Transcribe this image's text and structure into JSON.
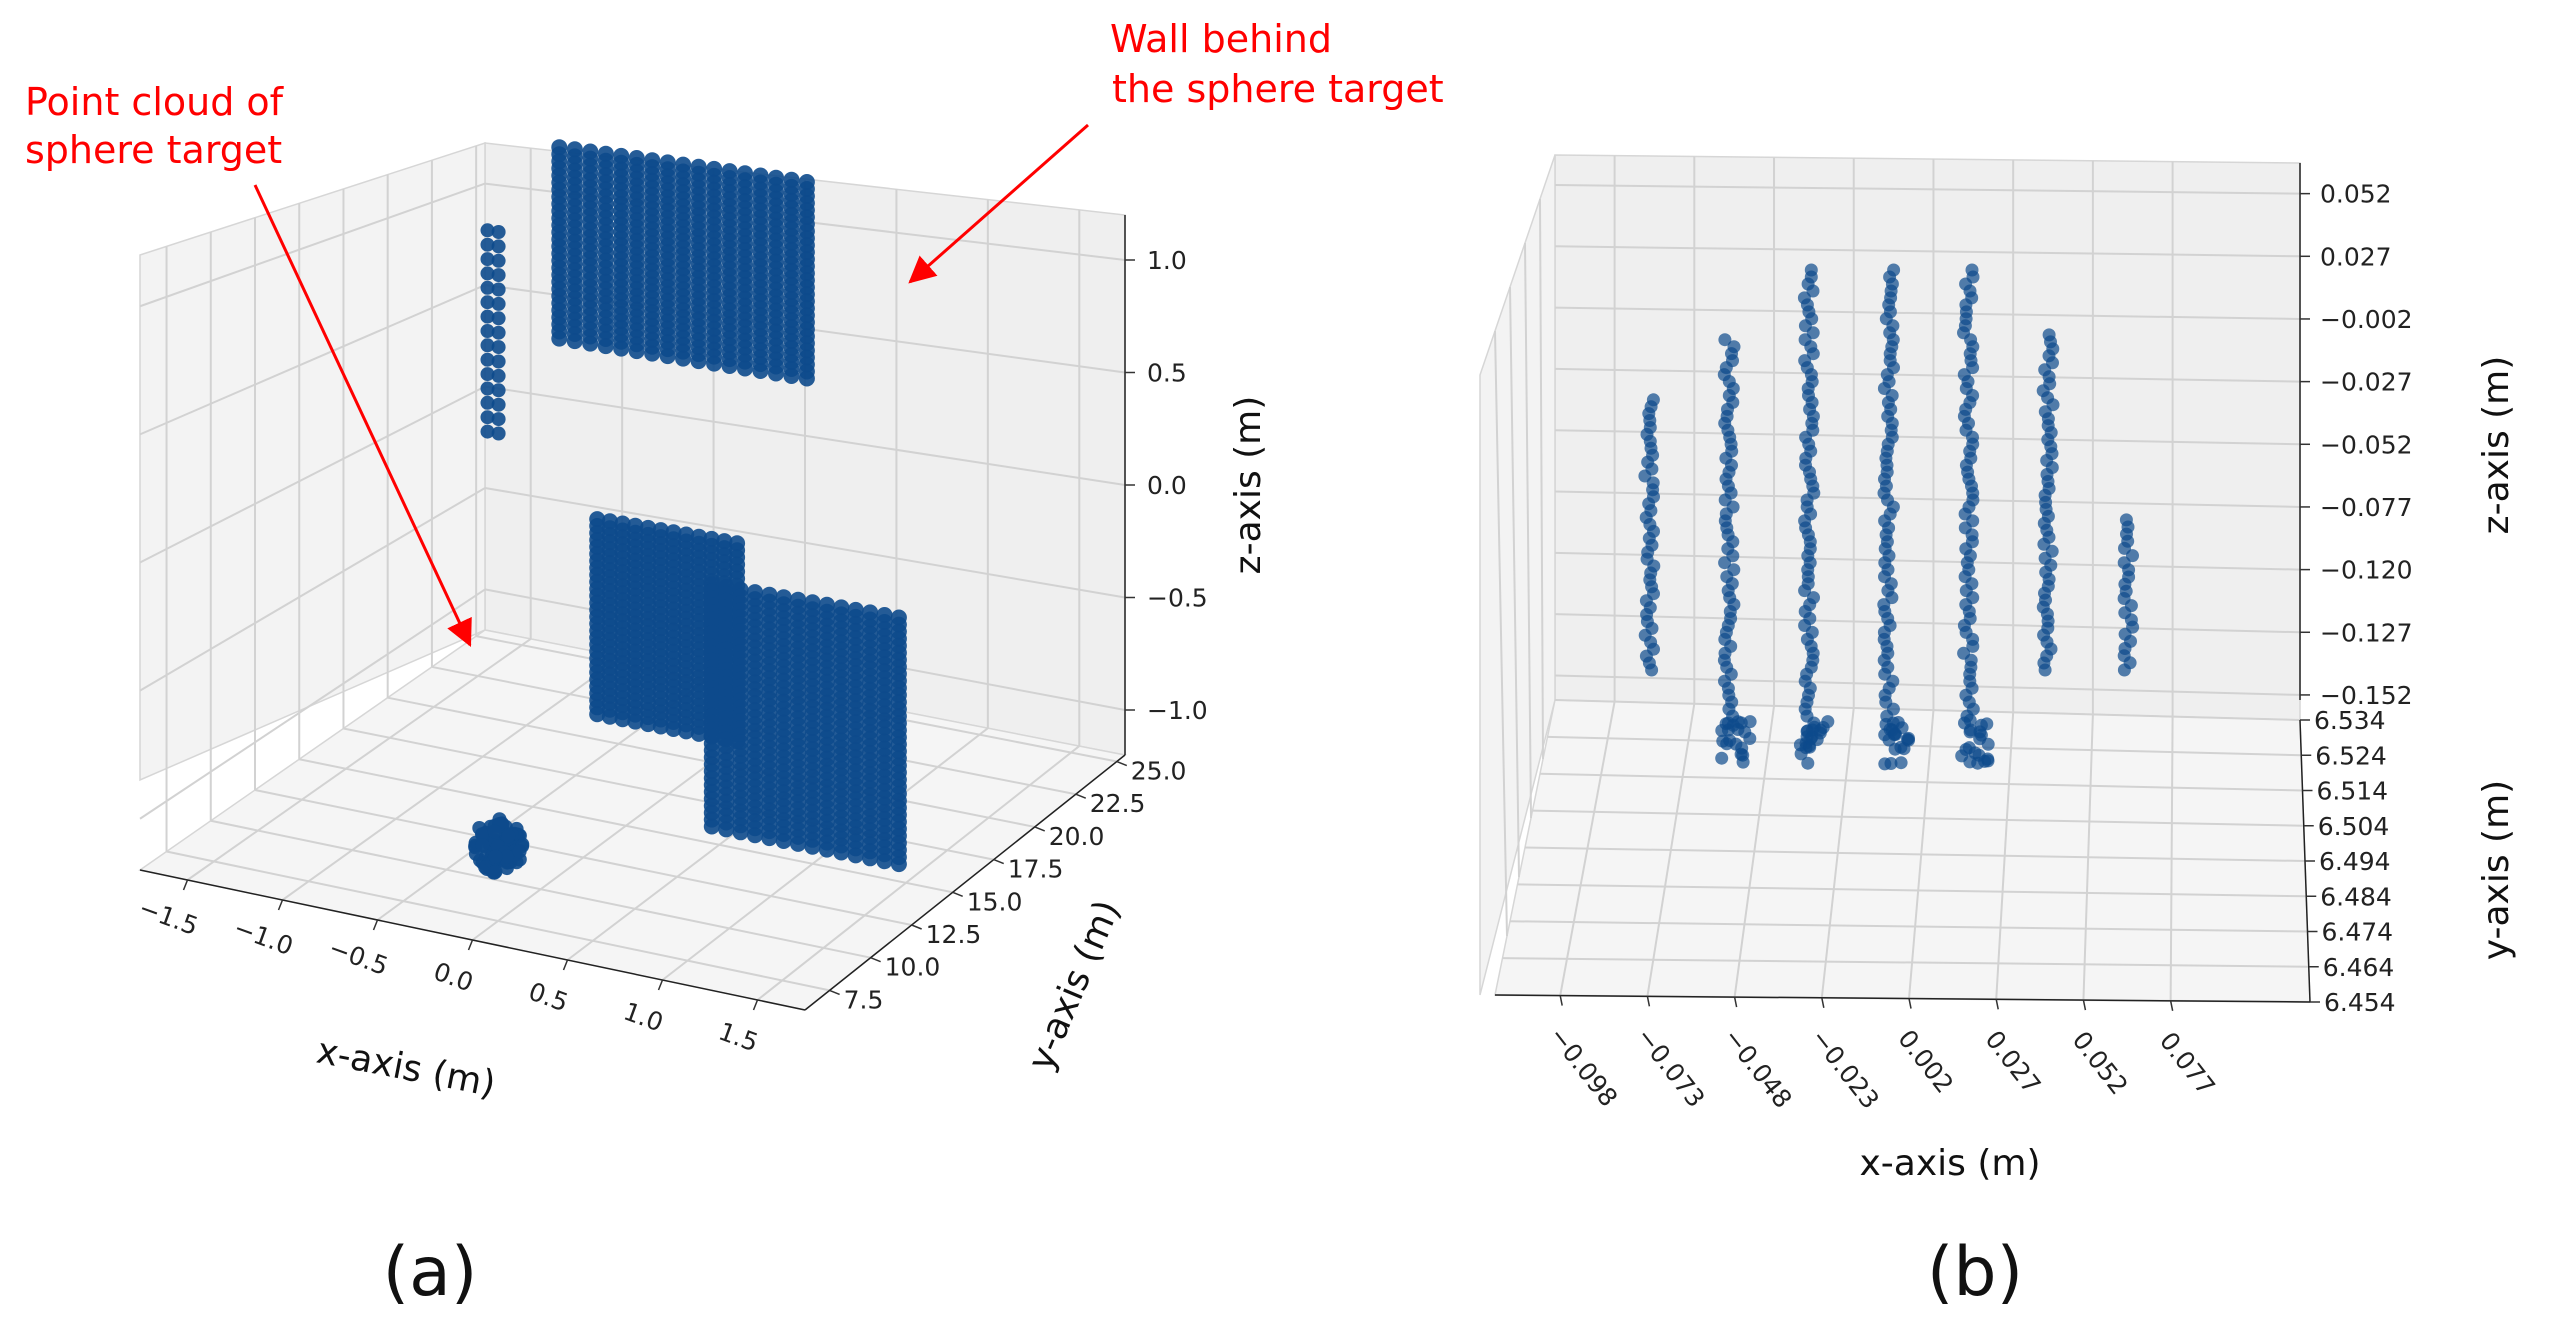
{
  "colors": {
    "points": "#0d4a8c",
    "annotation": "#ff0000"
  },
  "chart_data": [
    {
      "type": "scatter",
      "subtype": "3d-scatter",
      "panel_label": "(a)",
      "xlabel": "x-axis (m)",
      "ylabel": "y-axis (m)",
      "zlabel": "z-axis (m)",
      "xlim": [
        -1.75,
        1.75
      ],
      "ylim": [
        6.0,
        25.5
      ],
      "zlim": [
        -1.2,
        1.2
      ],
      "x_ticks": [
        "−1.5",
        "−1.0",
        "−0.5",
        "0.0",
        "0.5",
        "1.0",
        "1.5"
      ],
      "y_ticks": [
        "7.5",
        "10.0",
        "12.5",
        "15.0",
        "17.5",
        "20.0",
        "22.5",
        "25.0"
      ],
      "z_ticks": [
        "−1.0",
        "−0.5",
        "0.0",
        "0.5",
        "1.0"
      ],
      "grid": true,
      "annotations": [
        {
          "text_lines": [
            "Point cloud of",
            "sphere target"
          ],
          "points_to": "sphere cluster"
        },
        {
          "text_lines": [
            "Wall behind",
            "the sphere target"
          ],
          "points_to": "wall point columns"
        }
      ],
      "series": [
        {
          "clusters": [
            {
              "x": -0.05,
              "y": 8.0,
              "z": -0.9
            },
            {
              "x": -1.4,
              "y": 22.0,
              "z": 0.5
            }
          ],
          "columns": [
            {
              "x_range": [
                -1.2,
                0.15
              ],
              "y": 24.0,
              "z_range": [
                0.35,
                1.25
              ],
              "count": 17
            },
            {
              "x_range": [
                -0.2,
                0.55
              ],
              "y": 15.5,
              "z_range": [
                -0.75,
                0.15
              ],
              "count": 12
            },
            {
              "x_range": [
                0.55,
                1.55
              ],
              "y": 14.0,
              "z_range": [
                -1.05,
                0.05
              ],
              "count": 14
            }
          ]
        }
      ]
    },
    {
      "type": "scatter",
      "subtype": "3d-scatter",
      "panel_label": "(b)",
      "xlabel": "x-axis (m)",
      "ylabel": "y-axis (m)",
      "zlabel": "z-axis (m)",
      "x_ticks": [
        "−0.098",
        "−0.073",
        "−0.048",
        "−0.023",
        "0.002",
        "0.027",
        "0.052",
        "0.077"
      ],
      "y_ticks": [
        "6.534",
        "6.524",
        "6.514",
        "6.504",
        "6.494",
        "6.484",
        "6.474",
        "6.464",
        "6.454"
      ],
      "z_ticks": [
        "0.052",
        "0.027",
        "−0.002",
        "−0.027",
        "−0.052",
        "−0.077",
        "−0.120",
        "−0.127",
        "−0.152"
      ],
      "grid": true,
      "series": [
        {
          "columns": [
            {
              "x": -0.098,
              "z_range": [
                -0.127,
                -0.027
              ]
            },
            {
              "x": -0.073,
              "z_range": [
                -0.152,
                -0.002
              ]
            },
            {
              "x": -0.048,
              "z_range": [
                -0.152,
                0.027
              ]
            },
            {
              "x": -0.023,
              "z_range": [
                -0.152,
                0.027
              ]
            },
            {
              "x": 0.002,
              "z_range": [
                -0.152,
                0.027
              ]
            },
            {
              "x": 0.027,
              "z_range": [
                -0.127,
                0.0
              ]
            },
            {
              "x": 0.052,
              "z_range": [
                -0.077,
                -0.127
              ]
            }
          ]
        }
      ]
    }
  ]
}
